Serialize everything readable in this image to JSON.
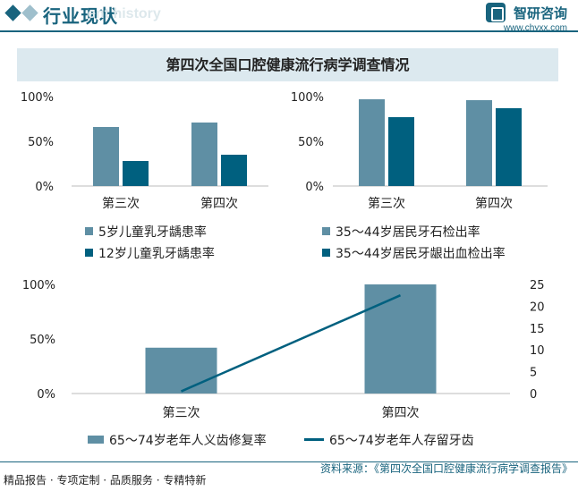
{
  "header": {
    "title": "行业现状",
    "subtitle": "ent history",
    "brand_name": "智研咨询",
    "brand_url": "www.chyxx.com"
  },
  "banner_title": "第四次全国口腔健康流行病学调查情况",
  "footer": {
    "left_text": "精品报告 · 专项定制 · 品质服务 · 专精特新",
    "source_text": "资料来源：《第四次全国口腔健康流行病学调查报告》"
  },
  "colors": {
    "light": "#5f8fa4",
    "dark": "#00607f",
    "accent": "#19647e"
  },
  "chart_data": [
    {
      "type": "bar",
      "title": "",
      "categories": [
        "第三次",
        "第四次"
      ],
      "series": [
        {
          "name": "5岁儿童乳牙龋患率",
          "values": [
            66,
            71
          ]
        },
        {
          "name": "12岁儿童乳牙龋患率",
          "values": [
            28,
            35
          ]
        }
      ],
      "y_ticks": [
        "0%",
        "50%",
        "100%"
      ],
      "ylim": [
        0,
        100
      ]
    },
    {
      "type": "bar",
      "title": "",
      "categories": [
        "第三次",
        "第四次"
      ],
      "series": [
        {
          "name": "35～44岁居民牙石检出率",
          "values": [
            97,
            96
          ]
        },
        {
          "name": "35～44岁居民牙龈出血检出率",
          "values": [
            77,
            87
          ]
        }
      ],
      "y_ticks": [
        "0%",
        "50%",
        "100%"
      ],
      "ylim": [
        0,
        100
      ]
    },
    {
      "type": "bar+line",
      "title": "",
      "categories": [
        "第三次",
        "第四次"
      ],
      "bar_series": {
        "name": "65～74岁老年人义齿修复率",
        "values": [
          42,
          100
        ]
      },
      "line_series": {
        "name": "65～74岁老年人存留牙齿",
        "values": [
          0.5,
          22.5
        ]
      },
      "y_ticks": [
        "0%",
        "50%",
        "100%"
      ],
      "ylim": [
        0,
        100
      ],
      "y2_ticks": [
        "0",
        "5",
        "10",
        "15",
        "20",
        "25"
      ],
      "y2lim": [
        0,
        25
      ]
    }
  ]
}
